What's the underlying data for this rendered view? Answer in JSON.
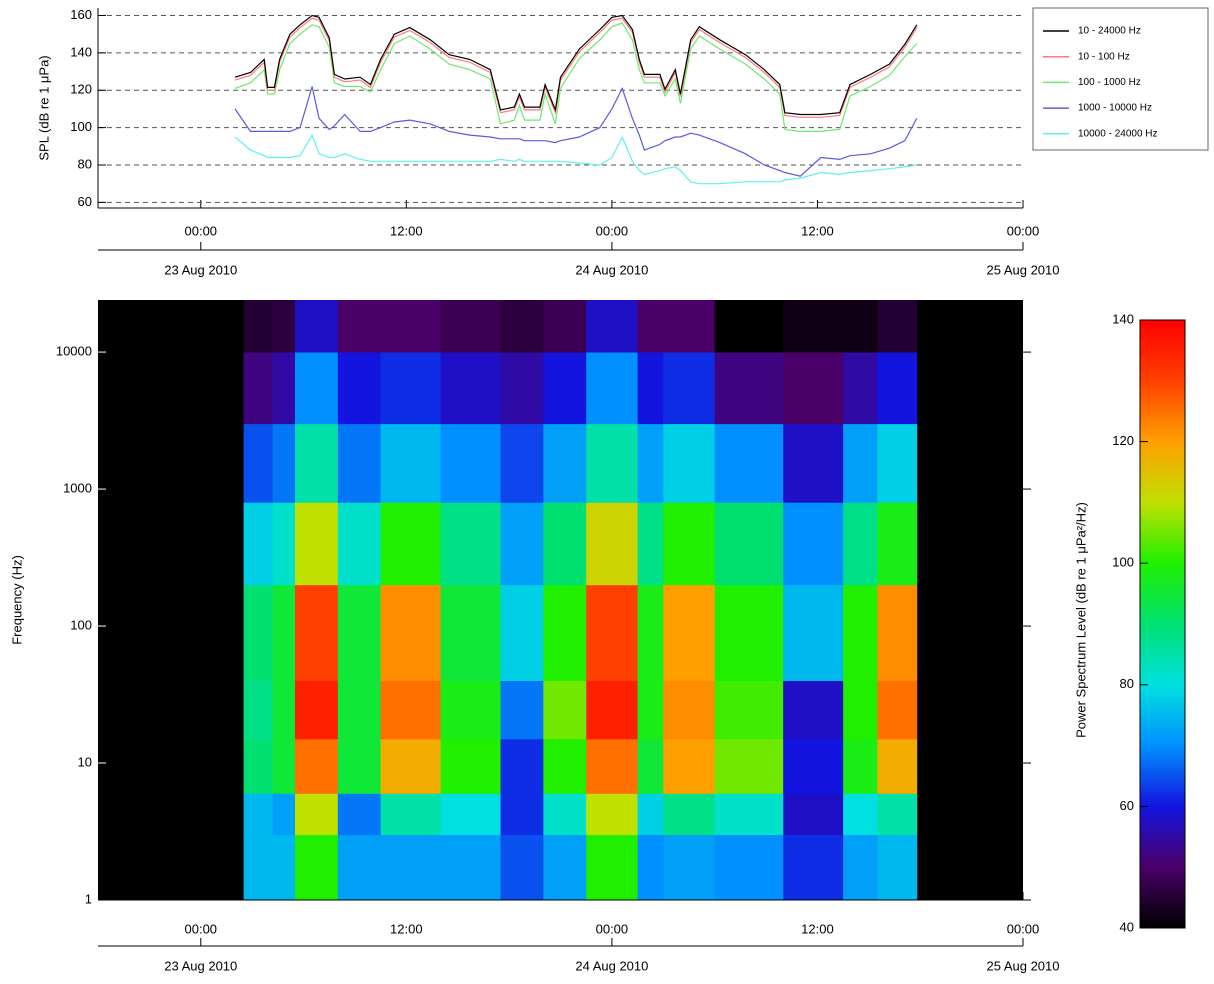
{
  "chart_data": [
    {
      "type": "line",
      "ylabel": "SPL (dB re 1 μPa)",
      "x": [
        2.0,
        2.9,
        3.7,
        3.9,
        4.3,
        4.6,
        5.2,
        5.8,
        6.5,
        6.9,
        7.5,
        7.8,
        8.4,
        9.3,
        9.9,
        10.5,
        11.3,
        12.2,
        13.4,
        14.5,
        15.7,
        16.9,
        17.5,
        18.3,
        18.6,
        18.9,
        19.8,
        20.1,
        20.7,
        21.0,
        22.1,
        23.3,
        24.0,
        24.6,
        25.2,
        25.6,
        25.9,
        26.8,
        27.1,
        27.7,
        28.0,
        28.6,
        29.1,
        30.3,
        31.8,
        32.9,
        33.8,
        34.1,
        35.0,
        36.2,
        37.3,
        37.9,
        39.1,
        40.2,
        41.1,
        41.8
      ],
      "xlim": [
        -6,
        48
      ],
      "xticks": [
        {
          "value": 0,
          "label": "00:00"
        },
        {
          "value": 12,
          "label": "12:00"
        },
        {
          "value": 24,
          "label": "00:00"
        },
        {
          "value": 36,
          "label": "12:00"
        },
        {
          "value": 48,
          "label": "00:00"
        }
      ],
      "date_ticks": [
        {
          "value": 0,
          "label": "23 Aug 2010"
        },
        {
          "value": 24,
          "label": "24 Aug 2010"
        },
        {
          "value": 48,
          "label": "25 Aug 2010"
        }
      ],
      "ylim": [
        57,
        164
      ],
      "yticks": [
        60,
        80,
        100,
        120,
        140,
        160
      ],
      "grid": true,
      "legend": "outside right",
      "series": [
        {
          "name": "10 - 24000 Hz",
          "color": "#000000",
          "values": [
            127,
            129.5,
            136.5,
            121.5,
            121.5,
            136.5,
            150,
            155,
            160,
            159,
            148,
            128.5,
            126,
            127,
            123,
            136.5,
            150,
            153.5,
            147,
            139,
            136.5,
            131,
            109.5,
            111,
            118,
            111,
            111,
            123,
            109.5,
            127,
            142,
            152.5,
            159,
            160,
            152.5,
            136.5,
            128.5,
            128.5,
            120.5,
            131,
            118,
            147,
            154,
            147,
            139,
            131,
            123,
            108,
            107,
            107,
            108,
            123,
            128.5,
            134,
            144.5,
            155
          ]
        },
        {
          "name": "10 - 100 Hz",
          "color": "#ff7a7a",
          "values": [
            125.5,
            128,
            135,
            120,
            120,
            135,
            148.5,
            153.5,
            158.5,
            157.5,
            146.5,
            127,
            124.5,
            125.5,
            121.5,
            135,
            148.5,
            152,
            145.5,
            137.5,
            135,
            129.5,
            108,
            109.5,
            116.5,
            109.5,
            109.5,
            121.5,
            108,
            125.5,
            140.5,
            151,
            157.5,
            158.5,
            151,
            135,
            127,
            127,
            119,
            129.5,
            116.5,
            145.5,
            152.5,
            145.5,
            137.5,
            129.5,
            121.5,
            106.5,
            105.5,
            105.5,
            106.5,
            121.5,
            127,
            132.5,
            143,
            153.5
          ]
        },
        {
          "name": "100 - 1000 Hz",
          "color": "#6ee86e",
          "values": [
            121,
            124,
            131,
            118,
            118,
            131,
            145,
            150,
            155,
            154,
            143,
            124,
            122,
            122,
            119,
            131,
            145,
            149,
            142,
            134,
            131,
            126,
            102,
            104,
            112,
            104,
            104,
            118,
            102,
            121,
            137,
            147,
            154,
            156,
            147,
            131,
            124,
            124,
            117,
            126,
            113,
            142,
            149,
            142,
            134,
            126,
            118,
            99,
            98,
            98,
            99,
            117,
            122,
            128,
            138,
            145
          ]
        },
        {
          "name": "1000 - 10000 Hz",
          "color": "#5a5ae0",
          "values": [
            110,
            98,
            98,
            98,
            98,
            98,
            98,
            100,
            122,
            105,
            99,
            101,
            107,
            98,
            98,
            100,
            103,
            104,
            102,
            98,
            96,
            95,
            94,
            94,
            94,
            93,
            93,
            93,
            92,
            93,
            95,
            100,
            110,
            121,
            105,
            96,
            88,
            91,
            93,
            95,
            95,
            97,
            96,
            92,
            86,
            80,
            77,
            76,
            74,
            84,
            83,
            85,
            86,
            89,
            93,
            105
          ]
        },
        {
          "name": "10000 - 24000 Hz",
          "color": "#5ef0f0",
          "values": [
            95,
            88,
            85,
            84,
            84,
            84,
            84,
            85,
            96,
            86,
            84,
            84,
            86,
            83,
            82,
            82,
            82,
            82,
            82,
            82,
            82,
            82,
            83,
            82,
            83,
            82,
            82,
            82,
            82,
            82,
            81,
            80,
            84,
            95,
            82,
            77,
            75,
            77,
            78,
            79,
            77,
            71,
            70,
            70,
            71,
            71,
            71,
            72,
            73,
            76,
            75,
            76,
            77,
            78,
            79,
            80
          ]
        }
      ]
    },
    {
      "type": "heatmap",
      "ylabel": "Frequency (Hz)",
      "x_edges": [
        2.5,
        4.2,
        5.5,
        8,
        10.5,
        14,
        17.5,
        20,
        22.5,
        25.5,
        27,
        30,
        34,
        37.5,
        39.5,
        41.8
      ],
      "y_edges": [
        1,
        3,
        6,
        15,
        40,
        200,
        800,
        3000,
        10000,
        24000
      ],
      "z": [
        [
          75,
          75,
          90,
          88,
          90,
          78,
          65,
          52,
          45
        ],
        [
          75,
          72,
          95,
          95,
          95,
          82,
          68,
          55,
          46
        ],
        [
          100,
          110,
          125,
          135,
          130,
          110,
          85,
          70,
          58
        ],
        [
          72,
          68,
          95,
          95,
          95,
          82,
          68,
          60,
          50
        ],
        [
          72,
          85,
          118,
          125,
          122,
          100,
          75,
          62,
          50
        ],
        [
          72,
          80,
          100,
          98,
          95,
          88,
          70,
          58,
          48
        ],
        [
          65,
          62,
          62,
          68,
          78,
          72,
          64,
          55,
          46
        ],
        [
          72,
          82,
          100,
          105,
          100,
          90,
          72,
          60,
          48
        ],
        [
          100,
          110,
          125,
          135,
          130,
          112,
          85,
          70,
          58
        ],
        [
          70,
          78,
          95,
          98,
          98,
          88,
          72,
          60,
          50
        ],
        [
          72,
          88,
          120,
          122,
          120,
          100,
          78,
          62,
          50
        ],
        [
          70,
          82,
          105,
          102,
          100,
          90,
          70,
          52,
          40
        ],
        [
          62,
          58,
          60,
          58,
          75,
          70,
          58,
          50,
          42
        ],
        [
          72,
          80,
          98,
          100,
          100,
          88,
          72,
          55,
          42
        ],
        [
          75,
          85,
          118,
          125,
          122,
          98,
          78,
          60,
          45
        ]
      ],
      "xlim": [
        -6,
        48
      ],
      "xticks": [
        {
          "value": 0,
          "label": "00:00"
        },
        {
          "value": 12,
          "label": "12:00"
        },
        {
          "value": 24,
          "label": "00:00"
        },
        {
          "value": 36,
          "label": "12:00"
        },
        {
          "value": 48,
          "label": "00:00"
        }
      ],
      "date_ticks": [
        {
          "value": 0,
          "label": "23 Aug 2010"
        },
        {
          "value": 24,
          "label": "24 Aug 2010"
        },
        {
          "value": 48,
          "label": "25 Aug 2010"
        }
      ],
      "ylim": [
        1,
        24000
      ],
      "yticks": [
        1,
        10,
        100,
        1000,
        10000
      ],
      "log_y": true,
      "background": "#000000",
      "clim": [
        40,
        140
      ],
      "colorbar_ticks": [
        40,
        60,
        80,
        100,
        120,
        140
      ],
      "colorbar_label": "Power Spectrum Level (dB re 1 μPa²/Hz)",
      "colormap": [
        "#000000",
        "#4a0068",
        "#1414e0",
        "#0090ff",
        "#00e0e0",
        "#00e070",
        "#20f000",
        "#c0e000",
        "#ffa000",
        "#ff4000",
        "#ff0000"
      ]
    }
  ]
}
